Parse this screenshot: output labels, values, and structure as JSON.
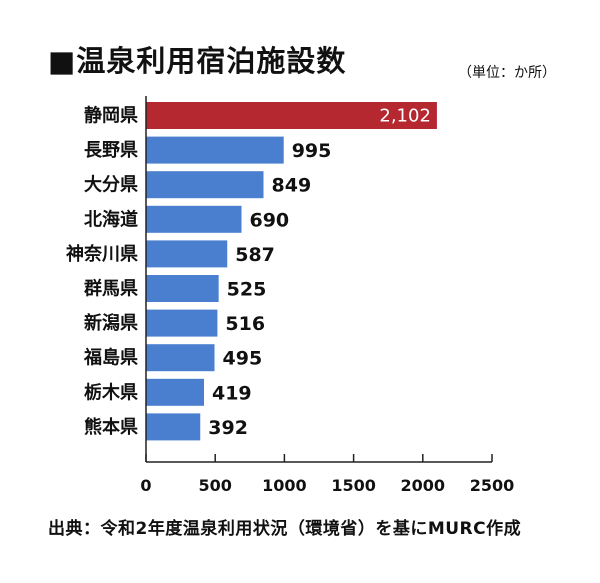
{
  "header": {
    "title": "■温泉利用宿泊施設数",
    "unit": "（単位：か所）"
  },
  "footer": {
    "source": "出典：令和2年度温泉利用状況（環境省）を基にMURC作成"
  },
  "colors": {
    "highlight": "#b5282f",
    "bar": "#4a7fd0",
    "axis": "#222222"
  },
  "chart_data": {
    "type": "bar",
    "orientation": "horizontal",
    "categories": [
      "静岡県",
      "長野県",
      "大分県",
      "北海道",
      "神奈川県",
      "群馬県",
      "新潟県",
      "福島県",
      "栃木県",
      "熊本県"
    ],
    "values": [
      2102,
      995,
      849,
      690,
      587,
      525,
      516,
      495,
      419,
      392
    ],
    "value_labels": [
      "2,102",
      "995",
      "849",
      "690",
      "587",
      "525",
      "516",
      "495",
      "419",
      "392"
    ],
    "highlight_index": 0,
    "xlim": [
      0,
      2500
    ],
    "xticks": [
      0,
      500,
      1000,
      1500,
      2000,
      2500
    ],
    "xtick_labels": [
      "0",
      "500",
      "1000",
      "1500",
      "2000",
      "2500"
    ],
    "grid": false,
    "title": "■温泉利用宿泊施設数"
  }
}
